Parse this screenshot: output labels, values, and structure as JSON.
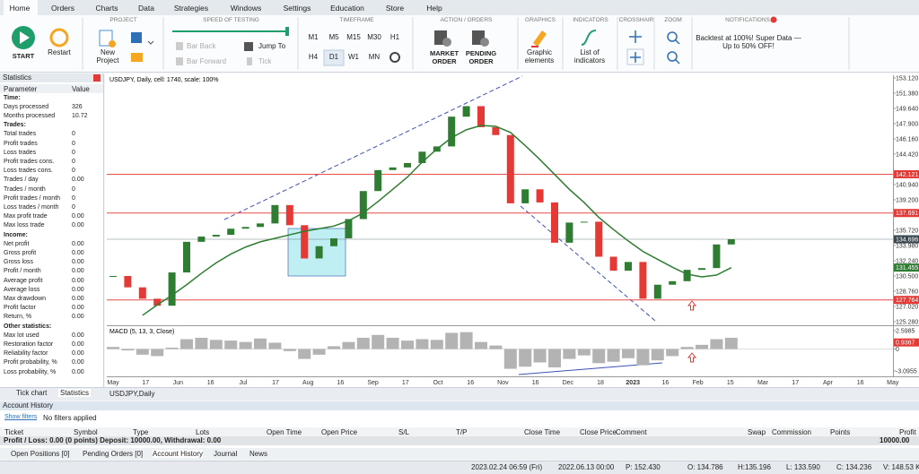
{
  "menu": {
    "tabs": [
      "Home",
      "Orders",
      "Charts",
      "Data",
      "Strategies",
      "Windows",
      "Settings",
      "Education",
      "Store",
      "Help"
    ]
  },
  "toolbar": {
    "project": {
      "title": "PROJECT",
      "start": "START",
      "restart": "Restart",
      "new_project": "New Project"
    },
    "speed": {
      "title": "SPEED OF TESTING",
      "bar_back": "Bar Back",
      "bar_forward": "Bar Forward",
      "jump_to": "Jump To",
      "tick": "Tick"
    },
    "timeframe": {
      "title": "TIMEFRAME",
      "buttons": [
        "M1",
        "M5",
        "M15",
        "M30",
        "H1",
        "H4",
        "D1",
        "W1",
        "MN"
      ]
    },
    "orders": {
      "title": "ACTION / ORDERS",
      "market": "MARKET ORDER",
      "pending": "PENDING ORDER"
    },
    "graphics": {
      "title": "GRAPHICS",
      "label": "Graphic elements"
    },
    "indicators": {
      "title": "INDICATORS",
      "label": "List of indicators"
    },
    "crosshair": {
      "title": "CROSSHAIR"
    },
    "zoom": {
      "title": "ZOOM"
    },
    "notifications": {
      "title": "NOTIFICATIONS",
      "text": "Backtest at 100%! Super Data — Up to 50% OFF!"
    }
  },
  "statistics": {
    "title": "Statistics",
    "header": [
      "Parameter",
      "Value"
    ],
    "sections": [
      {
        "title": "Time:",
        "rows": [
          [
            "Days processed",
            "326"
          ],
          [
            "Months processed",
            "10.72"
          ]
        ]
      },
      {
        "title": "Trades:",
        "rows": [
          [
            "Total trades",
            "0"
          ],
          [
            "Profit trades",
            "0"
          ],
          [
            "Loss trades",
            "0"
          ],
          [
            "Profit trades cons.",
            "0"
          ],
          [
            "Loss trades cons.",
            "0"
          ],
          [
            "Trades / day",
            "0.00"
          ],
          [
            "Trades / month",
            "0"
          ],
          [
            "Profit trades / month",
            "0"
          ],
          [
            "Loss trades / month",
            "0"
          ],
          [
            "Max profit trade",
            "0.00"
          ],
          [
            "Max loss trade",
            "0.00"
          ]
        ]
      },
      {
        "title": "Income:",
        "rows": [
          [
            "Net profit",
            "0.00"
          ],
          [
            "Gross profit",
            "0.00"
          ],
          [
            "Gross loss",
            "0.00"
          ],
          [
            "Profit / month",
            "0.00"
          ],
          [
            "Average profit",
            "0.00"
          ],
          [
            "Average loss",
            "0.00"
          ],
          [
            "Max drawdown",
            "0.00"
          ],
          [
            "Profit factor",
            "0.00"
          ],
          [
            "Return, %",
            "0.00"
          ]
        ]
      },
      {
        "title": "Other statistics:",
        "rows": [
          [
            "Max lot used",
            "0.00"
          ],
          [
            "Restoration factor",
            "0.00"
          ],
          [
            "Reliability factor",
            "0.00"
          ],
          [
            "Profit probability, %",
            "0.00"
          ],
          [
            "Loss probability, %",
            "0.00"
          ]
        ]
      }
    ]
  },
  "left_tabs": [
    "Tick chart",
    "Statistics"
  ],
  "chart": {
    "title": "USDJPY, Daily, cell: 1740, scale: 100%",
    "tab": "USDJPY,Daily",
    "ylim": [
      124.97,
      153.43
    ],
    "yticks": [
      {
        "value": 153.12,
        "label": "153.120"
      },
      {
        "value": 151.38,
        "label": "151.380"
      },
      {
        "value": 149.64,
        "label": "149.640"
      },
      {
        "value": 147.9,
        "label": "147.900"
      },
      {
        "value": 146.16,
        "label": "146.160"
      },
      {
        "value": 144.42,
        "label": "144.420"
      },
      {
        "value": 140.94,
        "label": "140.940"
      },
      {
        "value": 139.2,
        "label": "139.200"
      },
      {
        "value": 135.72,
        "label": "135.720"
      },
      {
        "value": 133.98,
        "label": "133.980"
      },
      {
        "value": 132.24,
        "label": "132.240"
      },
      {
        "value": 130.5,
        "label": "130.500"
      },
      {
        "value": 128.76,
        "label": "128.760"
      },
      {
        "value": 127.02,
        "label": "127.020"
      },
      {
        "value": 125.28,
        "label": "125.280"
      }
    ],
    "levels": [
      {
        "value": 142.121,
        "color": "#e53935",
        "line": true
      },
      {
        "value": 137.691,
        "color": "#e53935",
        "line": true
      },
      {
        "value": 134.696,
        "color": "#37474f",
        "line": true
      },
      {
        "value": 131.455,
        "color": "#2e7d32",
        "line": false
      },
      {
        "value": 127.764,
        "color": "#e53935",
        "line": true
      }
    ],
    "x_labels": [
      "May",
      "17",
      "Jun",
      "16",
      "Jul",
      "17",
      "Aug",
      "16",
      "Sep",
      "17",
      "Oct",
      "16",
      "Nov",
      "16",
      "Dec",
      "18",
      "2023",
      "16",
      "Feb",
      "15",
      "Mar",
      "17",
      "Apr",
      "16",
      "May"
    ],
    "closes": [
      130.5,
      129.2,
      127.9,
      127.1,
      130.9,
      134.4,
      135.0,
      135.2,
      135.9,
      136.1,
      136.5,
      138.6,
      136.3,
      132.5,
      133.9,
      134.8,
      137.0,
      140.2,
      142.6,
      142.9,
      143.4,
      144.7,
      145.3,
      148.7,
      149.9,
      147.5,
      146.6,
      138.8,
      140.4,
      138.9,
      134.3,
      136.6,
      136.7,
      132.7,
      131.1,
      132.1,
      127.9,
      129.5,
      129.9,
      131.2,
      131.4,
      134.1,
      134.696
    ],
    "up_color": "#2e7d32",
    "down_color": "#e53935",
    "ma": [
      null,
      null,
      126.0,
      127.2,
      128.3,
      129.5,
      130.8,
      132.0,
      133.0,
      133.8,
      134.4,
      134.8,
      135.2,
      135.6,
      135.9,
      136.2,
      136.8,
      137.7,
      139.0,
      140.4,
      141.8,
      143.5,
      145.0,
      146.3,
      147.2,
      147.7,
      147.6,
      146.9,
      145.4,
      143.8,
      142.1,
      140.4,
      138.9,
      137.2,
      135.8,
      134.5,
      133.3,
      132.4,
      131.5,
      130.7,
      130.4,
      130.6,
      131.455
    ],
    "ma_color": "#2e7d32",
    "macd": {
      "title": "MACD (5, 13, 3, Close)",
      "ylim": [
        -3.87,
        3.12
      ],
      "yticks": [
        2.5985,
        0,
        -3.0955
      ],
      "level": {
        "value": 0.9367,
        "color": "#e53935"
      },
      "color": "#b3b3b3",
      "values": [
        0.3,
        -0.2,
        -0.8,
        -1.0,
        0.2,
        1.4,
        1.6,
        1.3,
        1.2,
        1.0,
        1.5,
        0.9,
        -0.3,
        -1.4,
        -0.8,
        0.4,
        1.0,
        1.6,
        2.0,
        1.6,
        1.2,
        1.4,
        1.3,
        2.3,
        2.4,
        1.0,
        0.5,
        -2.8,
        -2.5,
        -1.9,
        -2.6,
        -1.4,
        -0.9,
        -2.0,
        -1.8,
        -1.3,
        -2.3,
        -1.6,
        -1.0,
        0.3,
        0.6,
        1.4,
        1.6
      ]
    }
  },
  "account": {
    "title": "Account History",
    "show_filters": "Show filters",
    "filters": "No filters applied",
    "columns": [
      "Ticket",
      "Symbol",
      "Type",
      "Lots",
      "Open Time",
      "Open Price",
      "S/L",
      "T/P",
      "Close Time",
      "Close Price",
      "Comment",
      "Swap",
      "Commission",
      "Points",
      "Profit"
    ],
    "summary": "Profit / Loss: 0.00 (0 points) Deposit: 10000.00, Withdrawal: 0.00",
    "total": "10000.00"
  },
  "bottom_tabs": [
    "Open Positions [0]",
    "Pending Orders [0]",
    "Account History",
    "Journal",
    "News"
  ],
  "status": [
    "2023.02.24 06:59 (Fri)",
    "2022.06.13 00:00",
    "P: 152.430",
    "O: 134.786",
    "H:135.196",
    "L: 133.590",
    "C: 134.236",
    "V: 148.53 K"
  ]
}
